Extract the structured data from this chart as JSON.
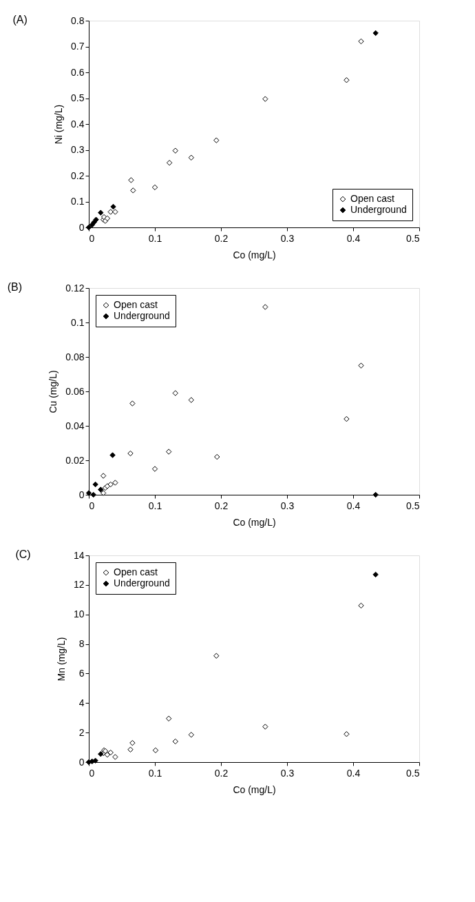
{
  "chart_data": [
    {
      "type": "scatter",
      "title": "(A)",
      "xlabel": "Co (mg/L)",
      "ylabel": "Ni (mg/L)",
      "xlim": [
        0,
        0.5
      ],
      "xticks": [
        0,
        0.1,
        0.2,
        0.3,
        0.4,
        0.5
      ],
      "ylim": [
        0,
        0.8
      ],
      "yticks": [
        0,
        0.1,
        0.2,
        0.3,
        0.4,
        0.5,
        0.6,
        0.7,
        0.8
      ],
      "grid": false,
      "legend": "bottom right",
      "marker": "diamond",
      "series": [
        {
          "name": "Open cast",
          "color": "#ffffff",
          "x": [
            0.022,
            0.023,
            0.025,
            0.028,
            0.033,
            0.04,
            0.064,
            0.067,
            0.1,
            0.122,
            0.131,
            0.155,
            0.193,
            0.267,
            0.39,
            0.412
          ],
          "values": [
            0.03,
            0.04,
            0.025,
            0.035,
            0.06,
            0.06,
            0.183,
            0.143,
            0.155,
            0.25,
            0.297,
            0.27,
            0.337,
            0.497,
            0.57,
            0.72
          ]
        },
        {
          "name": "Underground",
          "color": "#000000",
          "x": [
            0,
            0.005,
            0.008,
            0.011,
            0.018,
            0.037,
            0.434
          ],
          "values": [
            0,
            0.01,
            0.02,
            0.03,
            0.057,
            0.08,
            0.752
          ]
        }
      ]
    },
    {
      "type": "scatter",
      "title": "(B)",
      "xlabel": "Co (mg/L)",
      "ylabel": "Cu (mg/L)",
      "xlim": [
        0,
        0.5
      ],
      "xticks": [
        0,
        0.1,
        0.2,
        0.3,
        0.4,
        0.5
      ],
      "ylim": [
        0,
        0.12
      ],
      "yticks": [
        0,
        0.02,
        0.04,
        0.06,
        0.08,
        0.1,
        0.12
      ],
      "grid": false,
      "legend": "top left",
      "marker": "diamond",
      "series": [
        {
          "name": "Open cast",
          "color": "#ffffff",
          "x": [
            0.022,
            0.022,
            0.025,
            0.028,
            0.033,
            0.04,
            0.063,
            0.066,
            0.1,
            0.121,
            0.131,
            0.155,
            0.194,
            0.267,
            0.39,
            0.412
          ],
          "values": [
            0.001,
            0.011,
            0.004,
            0.005,
            0.006,
            0.007,
            0.024,
            0.053,
            0.015,
            0.025,
            0.059,
            0.055,
            0.022,
            0.109,
            0.044,
            0.075
          ]
        },
        {
          "name": "Underground",
          "color": "#000000",
          "x": [
            0,
            0.007,
            0.01,
            0.018,
            0.036,
            0.434
          ],
          "values": [
            0.001,
            0,
            0.006,
            0.003,
            0.023,
            0
          ]
        }
      ]
    },
    {
      "type": "scatter",
      "title": "(C)",
      "xlabel": "Co (mg/L)",
      "ylabel": "Mn (mg/L)",
      "xlim": [
        0,
        0.5
      ],
      "xticks": [
        0,
        0.1,
        0.2,
        0.3,
        0.4,
        0.5
      ],
      "ylim": [
        0,
        14
      ],
      "yticks": [
        0,
        2,
        4,
        6,
        8,
        10,
        12,
        14
      ],
      "grid": false,
      "legend": "top left",
      "marker": "diamond",
      "series": [
        {
          "name": "Open cast",
          "color": "#ffffff",
          "x": [
            0.022,
            0.023,
            0.025,
            0.028,
            0.033,
            0.04,
            0.063,
            0.066,
            0.101,
            0.121,
            0.131,
            0.155,
            0.193,
            0.267,
            0.39,
            0.412
          ],
          "values": [
            0.6,
            0.8,
            0.75,
            0.5,
            0.65,
            0.35,
            0.85,
            1.3,
            0.8,
            2.95,
            1.4,
            1.85,
            7.2,
            2.4,
            1.9,
            10.6
          ]
        },
        {
          "name": "Underground",
          "color": "#000000",
          "x": [
            0,
            0.005,
            0.01,
            0.018,
            0.434
          ],
          "values": [
            0,
            0.05,
            0.1,
            0.55,
            12.7
          ]
        }
      ]
    }
  ]
}
